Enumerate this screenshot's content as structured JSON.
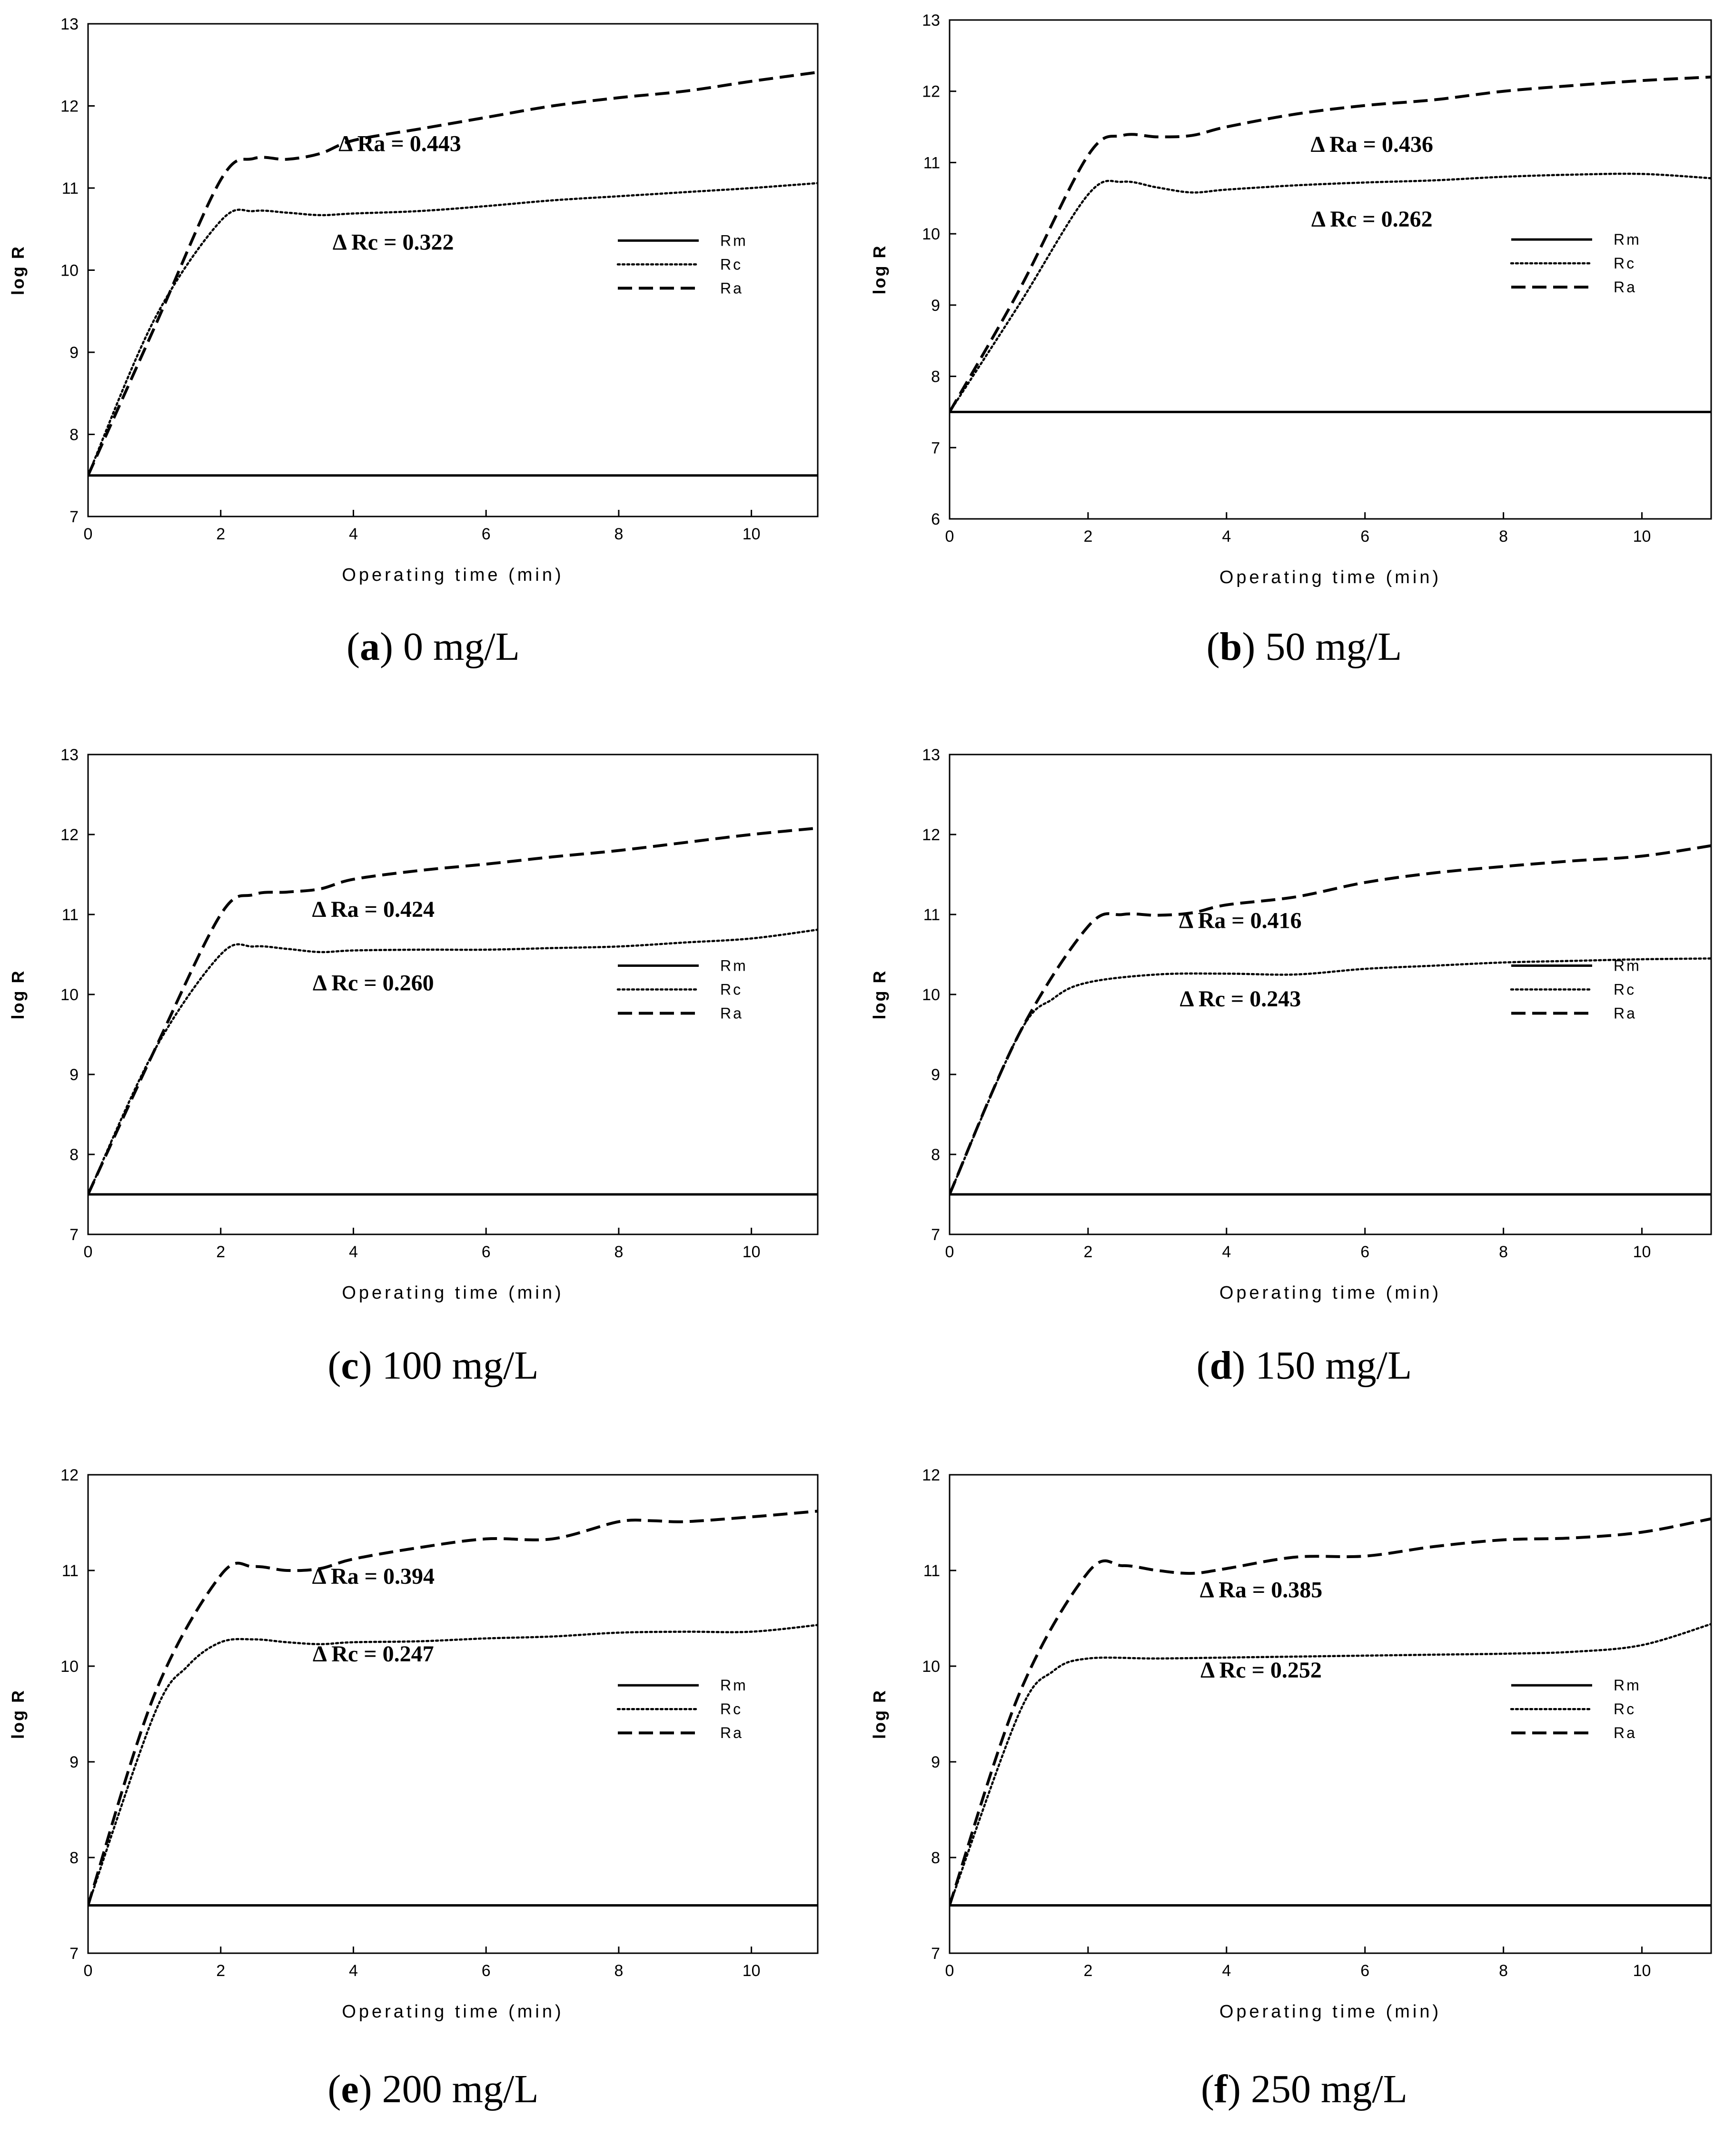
{
  "chart_data": [
    {
      "type": "line",
      "caption_letter": "a",
      "caption_rest": " 0 mg/L",
      "xlabel": "Operating time (min)",
      "ylabel": "log R",
      "xlim": [
        0,
        11
      ],
      "ylim": [
        7,
        13
      ],
      "xticks": [
        0,
        2,
        4,
        6,
        8,
        10
      ],
      "yticks": [
        7,
        8,
        9,
        10,
        11,
        12,
        13
      ],
      "legend": [
        "Rm",
        "Rc",
        "Ra"
      ],
      "annotations": {
        "ra_text": "Δ Ra = 0.443",
        "ra_at": [
          4.7,
          11.45
        ],
        "rc_text": "Δ Rc = 0.322",
        "rc_at": [
          4.6,
          10.25
        ]
      },
      "series": [
        {
          "name": "Rm",
          "style": "solid",
          "x": [
            0,
            11
          ],
          "y": [
            7.5,
            7.5
          ]
        },
        {
          "name": "Rc",
          "style": "dotted",
          "x": [
            0,
            1,
            2,
            2.5,
            3,
            3.5,
            4,
            5,
            6,
            7,
            8,
            9,
            10,
            11
          ],
          "y": [
            7.5,
            9.4,
            10.6,
            10.72,
            10.7,
            10.67,
            10.69,
            10.72,
            10.78,
            10.85,
            10.9,
            10.95,
            11.0,
            11.06
          ]
        },
        {
          "name": "Ra",
          "style": "dashed",
          "x": [
            0,
            1,
            2,
            2.5,
            3,
            3.5,
            4,
            5,
            6,
            7,
            8,
            9,
            10,
            11
          ],
          "y": [
            7.5,
            9.3,
            11.1,
            11.36,
            11.35,
            11.42,
            11.58,
            11.72,
            11.86,
            12.0,
            12.1,
            12.18,
            12.3,
            12.41
          ]
        }
      ]
    },
    {
      "type": "line",
      "caption_letter": "b",
      "caption_rest": " 50 mg/L",
      "xlabel": "Operating time (min)",
      "ylabel": "log R",
      "xlim": [
        0,
        11
      ],
      "ylim": [
        6,
        13
      ],
      "xticks": [
        0,
        2,
        4,
        6,
        8,
        10
      ],
      "yticks": [
        6,
        7,
        8,
        9,
        10,
        11,
        12,
        13
      ],
      "legend": [
        "Rm",
        "Rc",
        "Ra"
      ],
      "annotations": {
        "ra_text": "Δ Ra = 0.436",
        "ra_at": [
          6.1,
          11.15
        ],
        "rc_text": "Δ Rc = 0.262",
        "rc_at": [
          6.1,
          10.1
        ]
      },
      "series": [
        {
          "name": "Rm",
          "style": "solid",
          "x": [
            0,
            11
          ],
          "y": [
            7.5,
            7.5
          ]
        },
        {
          "name": "Rc",
          "style": "dotted",
          "x": [
            0,
            1,
            2,
            2.5,
            3,
            3.5,
            4,
            5,
            6,
            7,
            8,
            9,
            10,
            11
          ],
          "y": [
            7.5,
            9.0,
            10.55,
            10.73,
            10.65,
            10.58,
            10.62,
            10.68,
            10.72,
            10.75,
            10.8,
            10.83,
            10.84,
            10.78
          ]
        },
        {
          "name": "Ra",
          "style": "dashed",
          "x": [
            0,
            1,
            2,
            2.5,
            3,
            3.5,
            4,
            5,
            6,
            7,
            8,
            9,
            10,
            11
          ],
          "y": [
            7.5,
            9.2,
            11.1,
            11.38,
            11.36,
            11.38,
            11.5,
            11.68,
            11.8,
            11.88,
            12.0,
            12.08,
            12.15,
            12.2
          ]
        }
      ]
    },
    {
      "type": "line",
      "caption_letter": "c",
      "caption_rest": " 100 mg/L",
      "xlabel": "Operating time (min)",
      "ylabel": "log R",
      "xlim": [
        0,
        11
      ],
      "ylim": [
        7,
        13
      ],
      "xticks": [
        0,
        2,
        4,
        6,
        8,
        10
      ],
      "yticks": [
        7,
        8,
        9,
        10,
        11,
        12,
        13
      ],
      "legend": [
        "Rm",
        "Rc",
        "Ra"
      ],
      "annotations": {
        "ra_text": "Δ Ra = 0.424",
        "ra_at": [
          4.3,
          10.97
        ],
        "rc_text": "Δ Rc = 0.260",
        "rc_at": [
          4.3,
          10.05
        ]
      },
      "series": [
        {
          "name": "Rm",
          "style": "solid",
          "x": [
            0,
            11
          ],
          "y": [
            7.5,
            7.5
          ]
        },
        {
          "name": "Rc",
          "style": "dotted",
          "x": [
            0,
            1,
            2,
            2.5,
            3,
            3.5,
            4,
            5,
            6,
            7,
            8,
            9,
            10,
            11
          ],
          "y": [
            7.5,
            9.3,
            10.5,
            10.6,
            10.57,
            10.53,
            10.55,
            10.56,
            10.56,
            10.58,
            10.6,
            10.65,
            10.7,
            10.81
          ]
        },
        {
          "name": "Ra",
          "style": "dashed",
          "x": [
            0,
            1,
            2,
            2.5,
            3,
            3.5,
            4,
            5,
            6,
            7,
            8,
            9,
            10,
            11
          ],
          "y": [
            7.5,
            9.3,
            11.0,
            11.25,
            11.28,
            11.32,
            11.44,
            11.55,
            11.63,
            11.72,
            11.8,
            11.9,
            12.0,
            12.08
          ]
        }
      ]
    },
    {
      "type": "line",
      "caption_letter": "d",
      "caption_rest": " 150 mg/L",
      "xlabel": "Operating time (min)",
      "ylabel": "log R",
      "xlim": [
        0,
        11
      ],
      "ylim": [
        7,
        13
      ],
      "xticks": [
        0,
        2,
        4,
        6,
        8,
        10
      ],
      "yticks": [
        7,
        8,
        9,
        10,
        11,
        12,
        13
      ],
      "legend": [
        "Rm",
        "Rc",
        "Ra"
      ],
      "annotations": {
        "ra_text": "Δ Ra = 0.416",
        "ra_at": [
          4.2,
          10.83
        ],
        "rc_text": "Δ Rc = 0.243",
        "rc_at": [
          4.2,
          9.85
        ]
      },
      "series": [
        {
          "name": "Rm",
          "style": "solid",
          "x": [
            0,
            11
          ],
          "y": [
            7.5,
            7.5
          ]
        },
        {
          "name": "Rc",
          "style": "dotted",
          "x": [
            0,
            1,
            1.5,
            2,
            3,
            4,
            5,
            6,
            7,
            8,
            9,
            10,
            11
          ],
          "y": [
            7.5,
            9.5,
            9.95,
            10.15,
            10.25,
            10.26,
            10.25,
            10.32,
            10.36,
            10.4,
            10.42,
            10.44,
            10.45
          ]
        },
        {
          "name": "Ra",
          "style": "dashed",
          "x": [
            0,
            1,
            2,
            2.5,
            3,
            3.5,
            4,
            5,
            6,
            7,
            8,
            9,
            10,
            11
          ],
          "y": [
            7.5,
            9.5,
            10.85,
            11.0,
            10.99,
            11.02,
            11.12,
            11.22,
            11.4,
            11.52,
            11.6,
            11.67,
            11.73,
            11.86
          ]
        }
      ]
    },
    {
      "type": "line",
      "caption_letter": "e",
      "caption_rest": " 200 mg/L",
      "xlabel": "Operating time (min)",
      "ylabel": "log R",
      "xlim": [
        0,
        11
      ],
      "ylim": [
        7,
        12
      ],
      "xticks": [
        0,
        2,
        4,
        6,
        8,
        10
      ],
      "yticks": [
        7,
        8,
        9,
        10,
        11,
        12
      ],
      "legend": [
        "Rm",
        "Rc",
        "Ra"
      ],
      "annotations": {
        "ra_text": "Δ Ra = 0.394",
        "ra_at": [
          4.3,
          10.86
        ],
        "rc_text": "Δ Rc = 0.247",
        "rc_at": [
          4.3,
          10.05
        ]
      },
      "series": [
        {
          "name": "Rm",
          "style": "solid",
          "x": [
            0,
            11
          ],
          "y": [
            7.5,
            7.5
          ]
        },
        {
          "name": "Rc",
          "style": "dotted",
          "x": [
            0,
            1,
            1.5,
            2,
            2.5,
            3,
            3.5,
            4,
            5,
            6,
            7,
            8,
            9,
            10,
            11
          ],
          "y": [
            7.5,
            9.5,
            10.0,
            10.25,
            10.28,
            10.25,
            10.23,
            10.25,
            10.26,
            10.29,
            10.31,
            10.35,
            10.36,
            10.36,
            10.43
          ]
        },
        {
          "name": "Ra",
          "style": "dashed",
          "x": [
            0,
            1,
            2,
            2.5,
            3,
            3.5,
            4,
            5,
            6,
            7,
            8,
            8.5,
            9,
            10,
            11
          ],
          "y": [
            7.5,
            9.7,
            10.95,
            11.04,
            11.0,
            11.02,
            11.12,
            11.24,
            11.33,
            11.33,
            11.51,
            11.52,
            11.51,
            11.56,
            11.62
          ]
        }
      ]
    },
    {
      "type": "line",
      "caption_letter": "f",
      "caption_rest": " 250 mg/L",
      "xlabel": "Operating time (min)",
      "ylabel": "log R",
      "xlim": [
        0,
        11
      ],
      "ylim": [
        7,
        12
      ],
      "xticks": [
        0,
        2,
        4,
        6,
        8,
        10
      ],
      "yticks": [
        7,
        8,
        9,
        10,
        11,
        12
      ],
      "legend": [
        "Rm",
        "Rc",
        "Ra"
      ],
      "annotations": {
        "ra_text": "Δ Ra = 0.385",
        "ra_at": [
          4.5,
          10.72
        ],
        "rc_text": "Δ Rc = 0.252",
        "rc_at": [
          4.5,
          9.88
        ]
      },
      "series": [
        {
          "name": "Rm",
          "style": "solid",
          "x": [
            0,
            11
          ],
          "y": [
            7.5,
            7.5
          ]
        },
        {
          "name": "Rc",
          "style": "dotted",
          "x": [
            0,
            1,
            1.5,
            2,
            3,
            4,
            5,
            6,
            7,
            8,
            9,
            10,
            11
          ],
          "y": [
            7.5,
            9.5,
            9.95,
            10.08,
            10.08,
            10.09,
            10.1,
            10.11,
            10.12,
            10.13,
            10.15,
            10.22,
            10.44
          ]
        },
        {
          "name": "Ra",
          "style": "dashed",
          "x": [
            0,
            1,
            2,
            2.5,
            3,
            3.5,
            4,
            5,
            6,
            7,
            8,
            9,
            10,
            11
          ],
          "y": [
            7.5,
            9.7,
            10.98,
            11.05,
            11.0,
            10.97,
            11.02,
            11.14,
            11.15,
            11.25,
            11.32,
            11.34,
            11.4,
            11.54
          ]
        }
      ]
    }
  ]
}
